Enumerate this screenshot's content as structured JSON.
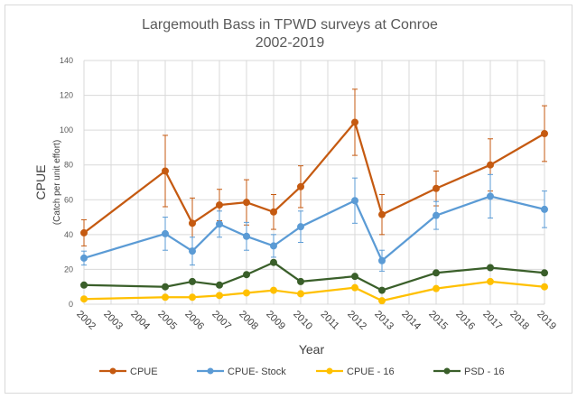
{
  "chart_data": {
    "type": "line",
    "title_line1": "Largemouth Bass in TPWD surveys at Conroe",
    "title_line2": "2002-2019",
    "xlabel": "Year",
    "ylabel": "CPUE",
    "ylabel_sub": "(Catch per unit effort)",
    "ylim": [
      0,
      140
    ],
    "yticks": [
      0,
      20,
      40,
      60,
      80,
      100,
      120,
      140
    ],
    "categories": [
      "2002",
      "2003",
      "2004",
      "2005",
      "2006",
      "2007",
      "2008",
      "2009",
      "2010",
      "2011",
      "2012",
      "2013",
      "2014",
      "2015",
      "2016",
      "2017",
      "2018",
      "2019"
    ],
    "grid": true,
    "legend_position": "bottom",
    "series": [
      {
        "name": "CPUE",
        "color": "#c55a11",
        "values": [
          41,
          null,
          null,
          76.5,
          46.5,
          57,
          58.5,
          53,
          67.5,
          null,
          104.5,
          51.5,
          null,
          66.5,
          null,
          80,
          null,
          98
        ],
        "err": [
          7.5,
          null,
          null,
          20.5,
          14.5,
          9,
          13,
          10,
          12,
          null,
          19,
          11.5,
          null,
          10,
          null,
          15,
          null,
          16
        ]
      },
      {
        "name": "CPUE- Stock",
        "color": "#5b9bd5",
        "values": [
          26.5,
          null,
          null,
          40.5,
          30.5,
          46,
          39,
          33.5,
          44.5,
          null,
          59.5,
          25,
          null,
          51,
          null,
          62,
          null,
          54.5
        ],
        "err": [
          4,
          null,
          null,
          9.5,
          8,
          7.5,
          8,
          6.5,
          9,
          null,
          13,
          6,
          null,
          8,
          null,
          12.5,
          null,
          10.5
        ]
      },
      {
        "name": "CPUE - 16",
        "color": "#ffc000",
        "values": [
          3,
          null,
          null,
          4,
          4,
          5,
          6.5,
          8,
          6,
          null,
          9.5,
          2,
          null,
          9,
          null,
          13,
          null,
          10
        ],
        "err": null
      },
      {
        "name": "PSD - 16",
        "color": "#3a5f2a",
        "values": [
          11,
          null,
          null,
          10,
          13,
          11,
          17,
          24,
          13,
          null,
          16,
          8,
          null,
          18,
          null,
          21,
          null,
          18
        ],
        "err": null
      }
    ]
  }
}
